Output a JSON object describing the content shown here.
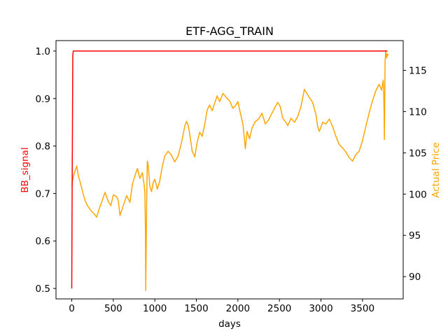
{
  "chart_data": {
    "type": "line",
    "title": "ETF-AGG_TRAIN",
    "xlabel": "days",
    "ylabel_left": "BB_signal",
    "ylabel_right": "Actual Price",
    "xlim": [
      -190,
      3990
    ],
    "ylim_left": [
      0.478,
      1.022
    ],
    "ylim_right": [
      87.3,
      118.6
    ],
    "x_ticks": [
      0,
      500,
      1000,
      1500,
      2000,
      2500,
      3000,
      3500
    ],
    "y_left_ticks": [
      0.5,
      0.6,
      0.7,
      0.8,
      0.9,
      1.0
    ],
    "y_left_tick_labels": [
      "0.5",
      "0.6",
      "0.7",
      "0.8",
      "0.9",
      "1.0"
    ],
    "y_right_ticks": [
      90,
      95,
      100,
      105,
      110,
      115
    ],
    "grid": false,
    "colors": {
      "BB_signal": "#ff0000",
      "Actual Price": "#ffa500"
    },
    "series": [
      {
        "name": "BB_signal",
        "axis": "left",
        "x": [
          0,
          5,
          12,
          17,
          3800
        ],
        "values": [
          0.5,
          0.72,
          0.99,
          1.0,
          1.0
        ]
      },
      {
        "name": "Actual Price",
        "axis": "right",
        "x": [
          0,
          20,
          40,
          60,
          80,
          100,
          130,
          160,
          190,
          230,
          270,
          300,
          330,
          370,
          400,
          440,
          470,
          500,
          540,
          560,
          580,
          620,
          660,
          700,
          730,
          760,
          790,
          820,
          850,
          870,
          880,
          887,
          890,
          895,
          900,
          905,
          910,
          920,
          940,
          960,
          980,
          1000,
          1030,
          1060,
          1090,
          1120,
          1160,
          1200,
          1240,
          1280,
          1320,
          1360,
          1380,
          1400,
          1420,
          1450,
          1480,
          1510,
          1540,
          1570,
          1600,
          1630,
          1660,
          1690,
          1720,
          1750,
          1780,
          1820,
          1860,
          1900,
          1940,
          1970,
          2000,
          2030,
          2060,
          2090,
          2110,
          2140,
          2170,
          2210,
          2250,
          2290,
          2330,
          2370,
          2410,
          2450,
          2480,
          2510,
          2540,
          2570,
          2600,
          2640,
          2680,
          2720,
          2760,
          2800,
          2830,
          2860,
          2900,
          2940,
          2960,
          2980,
          3020,
          3060,
          3100,
          3140,
          3180,
          3220,
          3260,
          3300,
          3340,
          3380,
          3420,
          3460,
          3500,
          3540,
          3580,
          3620,
          3660,
          3700,
          3730,
          3750,
          3755,
          3760,
          3763,
          3767,
          3772,
          3780,
          3790,
          3800,
          3810
        ],
        "values": [
          101.0,
          102.2,
          102.8,
          103.4,
          102.2,
          101.5,
          100.3,
          99.2,
          98.6,
          98.0,
          97.6,
          97.2,
          98.2,
          99.3,
          100.2,
          99.1,
          98.6,
          99.9,
          99.7,
          99.2,
          97.4,
          98.6,
          99.8,
          99.0,
          101.2,
          102.2,
          103.1,
          101.9,
          102.6,
          101.2,
          100.2,
          95.2,
          88.3,
          92.2,
          97.6,
          101.3,
          104.0,
          103.5,
          100.9,
          100.3,
          101.4,
          101.8,
          100.6,
          101.6,
          103.4,
          104.6,
          105.2,
          104.7,
          103.9,
          104.6,
          106.2,
          108.2,
          108.8,
          108.4,
          107.3,
          105.2,
          104.5,
          106.3,
          107.5,
          107.0,
          108.4,
          110.2,
          110.8,
          110.1,
          111.0,
          111.9,
          111.2,
          112.2,
          111.7,
          111.3,
          110.4,
          110.7,
          111.2,
          109.8,
          108.5,
          105.5,
          107.6,
          106.7,
          108.0,
          108.8,
          109.1,
          109.8,
          108.5,
          109.0,
          109.8,
          110.6,
          111.1,
          110.6,
          109.2,
          108.8,
          108.3,
          109.2,
          108.7,
          109.4,
          110.6,
          112.7,
          112.2,
          111.7,
          111.1,
          109.6,
          108.2,
          107.6,
          108.7,
          108.5,
          109.1,
          108.2,
          107.0,
          106.0,
          105.6,
          105.1,
          104.4,
          104.0,
          104.8,
          105.2,
          106.5,
          108.2,
          109.8,
          111.3,
          112.5,
          113.3,
          112.6,
          113.8,
          112.2,
          110.0,
          106.6,
          110.3,
          116.0,
          117.4,
          116.5,
          117.0,
          116.8
        ]
      }
    ]
  }
}
